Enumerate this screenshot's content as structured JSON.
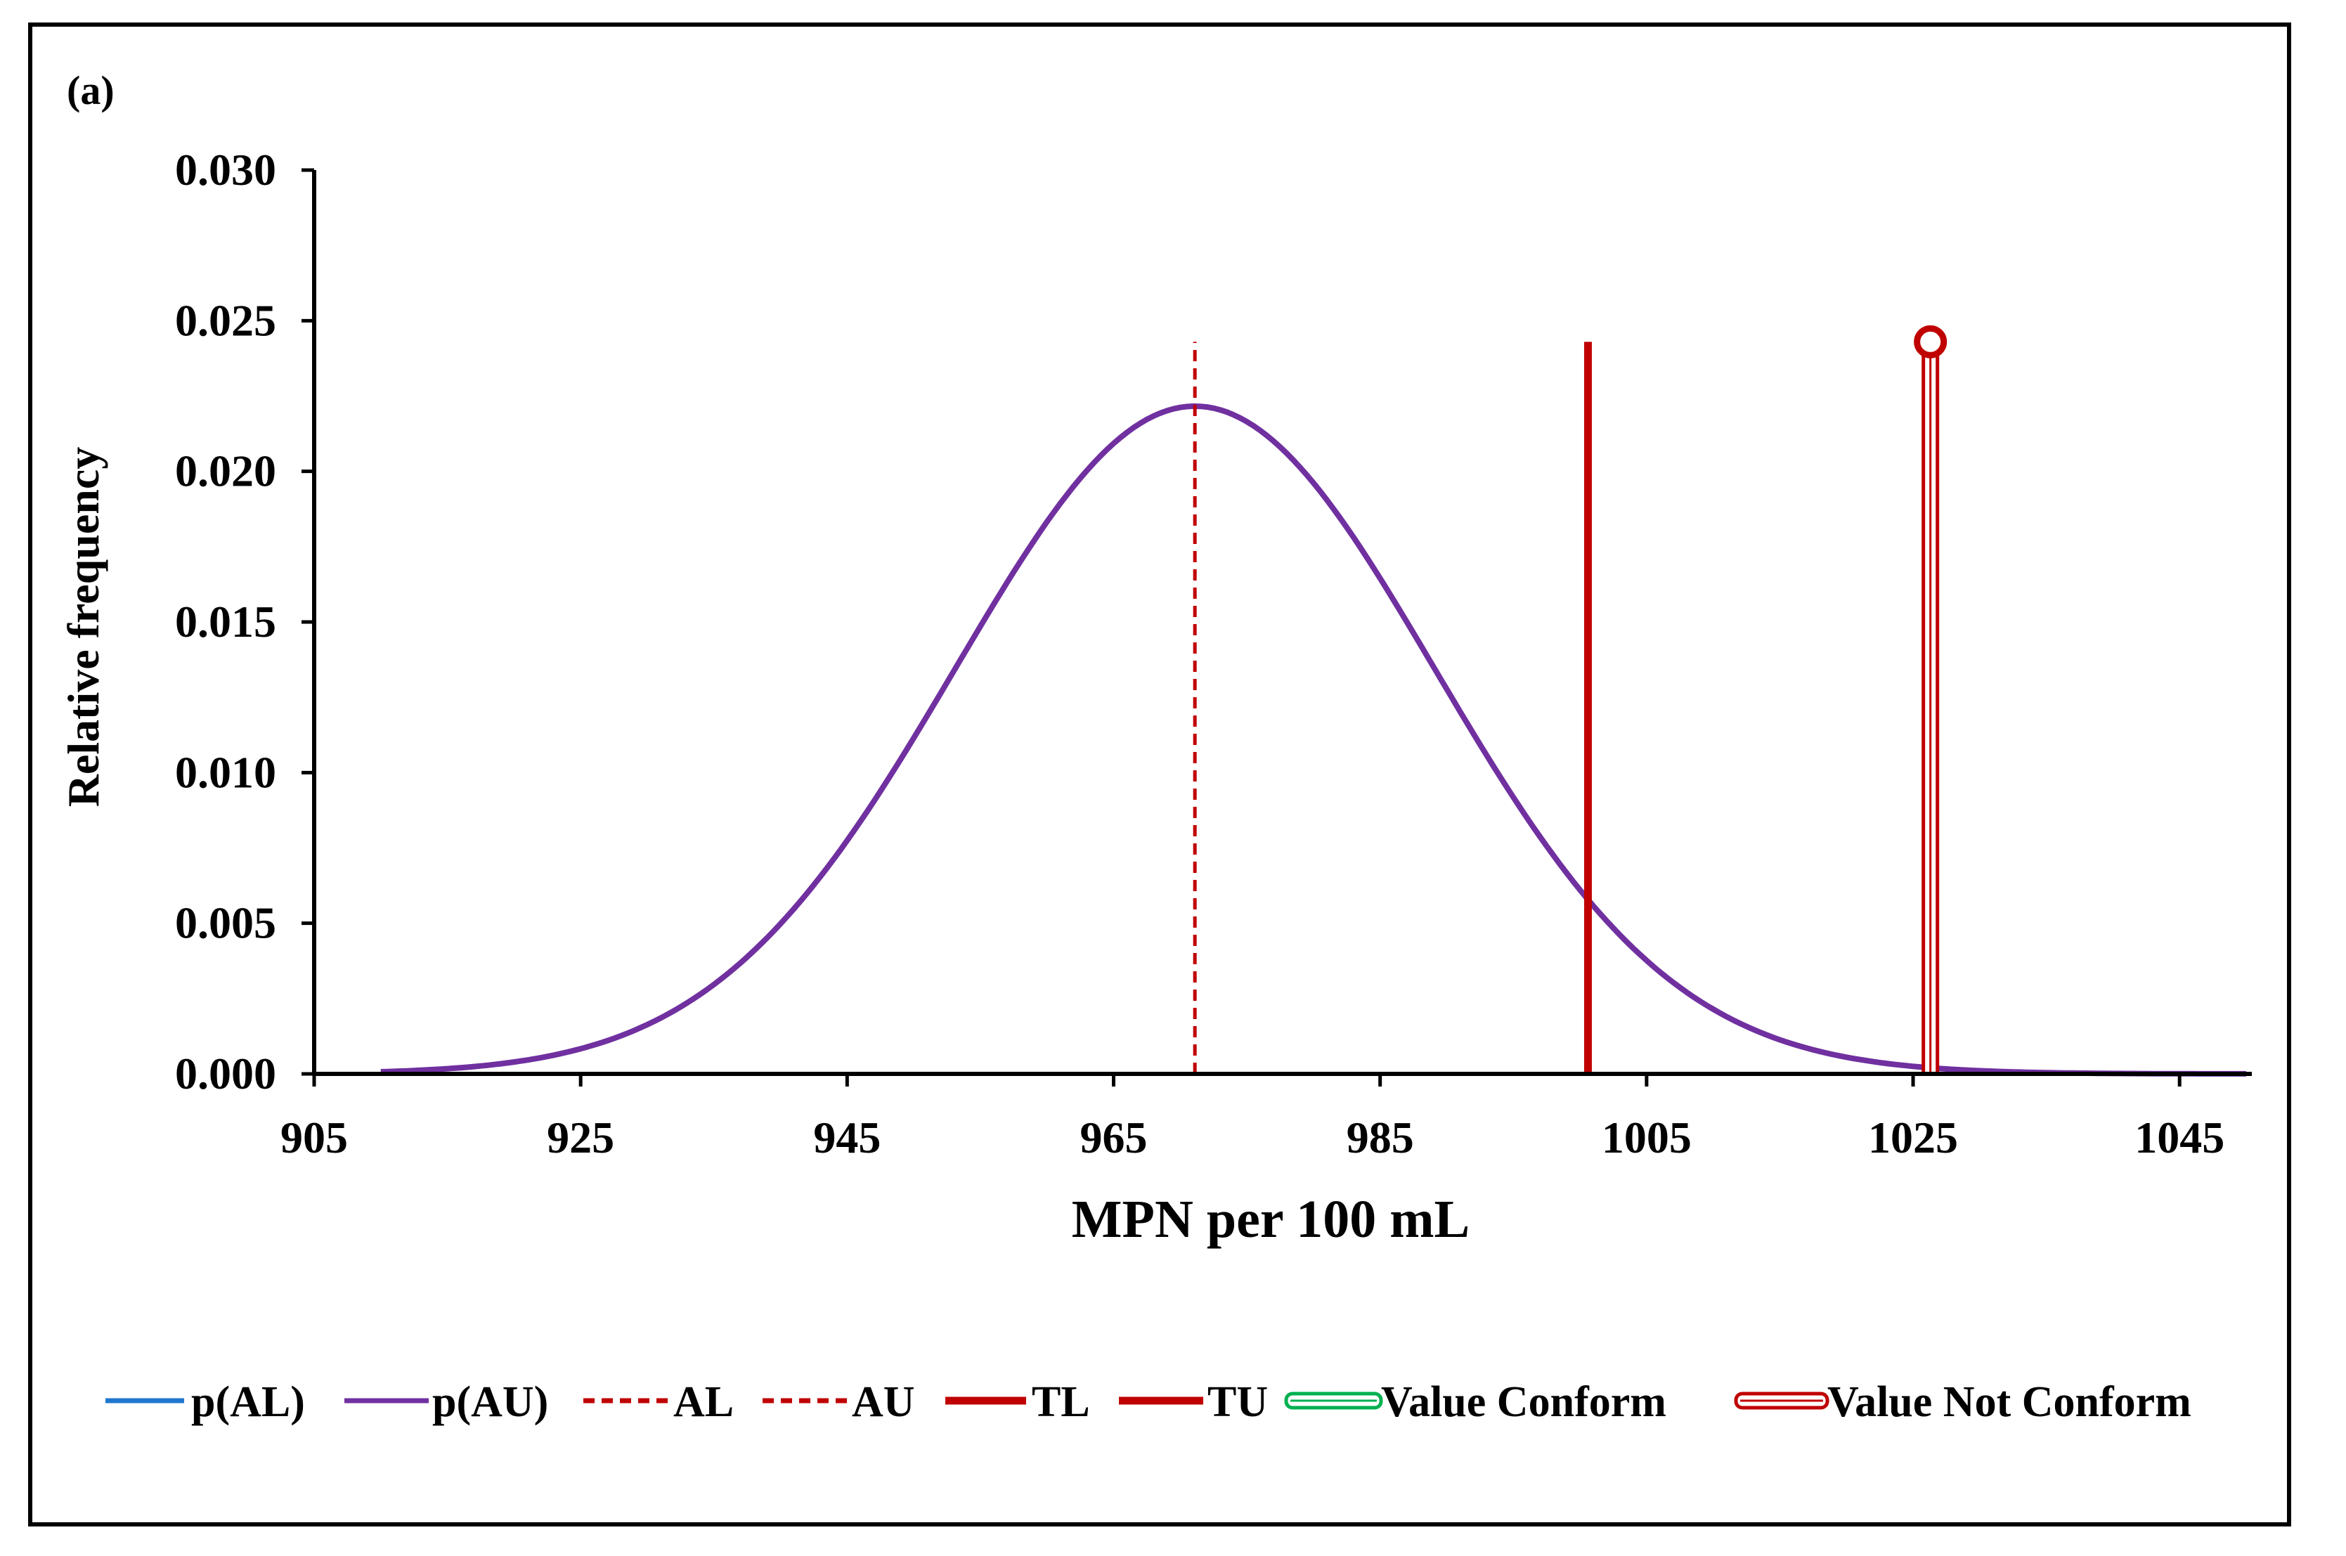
{
  "chart_data": {
    "type": "line",
    "panel_label": "(a)",
    "xlabel": "MPN per 100 mL",
    "ylabel": "Relative frequency",
    "xlim": [
      905,
      1050
    ],
    "ylim": [
      0,
      0.03
    ],
    "x_ticks": [
      905,
      925,
      945,
      965,
      985,
      1005,
      1025,
      1045
    ],
    "y_ticks": [
      0.0,
      0.005,
      0.01,
      0.015,
      0.02,
      0.025,
      0.03
    ],
    "y_tick_labels": [
      "0.000",
      "0.005",
      "0.010",
      "0.015",
      "0.020",
      "0.025",
      "0.030"
    ],
    "grid": false,
    "series": [
      {
        "name": "p(AL)",
        "kind": "curve",
        "color": "#1f77d0",
        "visible_in_plot": false
      },
      {
        "name": "p(AU)",
        "kind": "curve",
        "color": "#7030a0",
        "distribution": "normal",
        "mean": 971.1,
        "sd": 18.0,
        "x_range": [
          910,
          1050
        ]
      },
      {
        "name": "AL",
        "kind": "vertical-dashed",
        "color": "#c00000",
        "x": 971.1
      },
      {
        "name": "AU",
        "kind": "vertical-dashed",
        "color": "#c00000",
        "x": 971.1
      },
      {
        "name": "TL",
        "kind": "vertical-solid",
        "color": "#c00000",
        "x": 1000.6,
        "y_top": 0.0243
      },
      {
        "name": "TU",
        "kind": "vertical-solid",
        "color": "#c00000",
        "x": 1000.6,
        "y_top": 0.0243
      },
      {
        "name": "Value Conform",
        "kind": "vertical-double",
        "color": "#00b050",
        "visible_in_plot": false
      },
      {
        "name": "Value Not Conform",
        "kind": "vertical-double-marker",
        "color": "#c00000",
        "x": 1026.3,
        "y_top": 0.0243
      }
    ],
    "legend": {
      "placement": "bottom",
      "entries": [
        "p(AL)",
        "p(AU)",
        "AL",
        "AU",
        "TL",
        "TU",
        "Value Conform",
        "Value Not Conform"
      ]
    }
  }
}
